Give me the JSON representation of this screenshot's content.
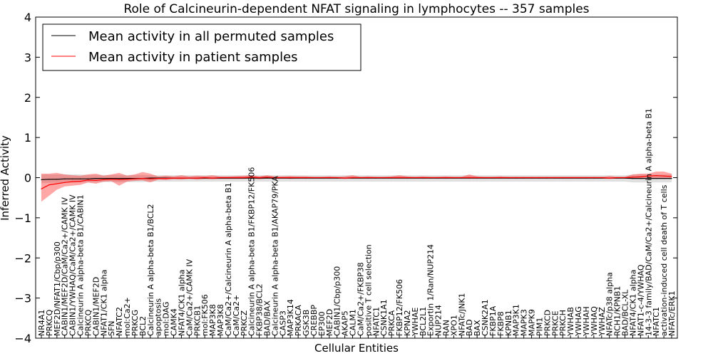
{
  "chart_data": {
    "type": "line",
    "title": "Role of Calcineurin-dependent NFAT signaling in lymphocytes -- 357 samples",
    "xlabel": "Cellular Entities",
    "ylabel": "Inferred Activity",
    "ylim": [
      -4,
      4
    ],
    "yticks": [
      -4,
      -3,
      -2,
      -1,
      0,
      1,
      2,
      3,
      4
    ],
    "ytick_labels": [
      "−4",
      "−3",
      "−2",
      "−1",
      "0",
      "1",
      "2",
      "3",
      "4"
    ],
    "legend_position": "top-left",
    "categories": [
      "NR4A1",
      "PRKCQ",
      "MEF2D/NFAT1/Cbp/p300",
      "CABIN1/MEF2D/CaM/Ca2+/CAMK IV",
      "CABIN1/YWHAQ/CaM/Ca2+/CAMK IV",
      "Calcineurin A alpha-beta B1/CABIN1",
      "PRKCQ",
      "CABIN1/MEF2D",
      "NFAT1/CK1 alpha",
      "SFN",
      "NFATC2",
      "mol:Ca2+",
      "PRKCG",
      "BCL2",
      "Calcineurin A alpha-beta B1/BCL2",
      "apoptosis",
      "mol:DAG",
      "CAMK4",
      "NFAT4/CK1 alpha",
      "CaM/Ca2+/CAMK IV",
      "PRKCB1",
      "mol:FK506",
      "MAP3K8",
      "MAP3K8",
      "CaM/Ca2+/Calcineurin A alpha-beta B1",
      "CaM/Ca2+",
      "PRKCZ",
      "Calcineurin A alpha-beta B1/FKBP12/FK506",
      "FKBP38/BCL2",
      "BAD/BAX",
      "Calcineurin A alpha-beta B1/AKAP79/PKA",
      "CASP3",
      "MAP3K14",
      "PRKACA",
      "GSK3B",
      "CREBBP",
      "EP300",
      "MEF2D",
      "CABIN1/Cbp/p300",
      "AKAP5",
      "CALM1",
      "CaM/Ca2+/FKBP38",
      "positive T cell selection",
      "NFATC1",
      "CSNK1A1",
      "PRKCA",
      "FKBP12/FK506",
      "KPNA2",
      "YWHAE",
      "BCL2L1",
      "Exportin 1/Ran/NUP214",
      "NUP214",
      "RAN",
      "XPO1",
      "NFATc/JNK1",
      "BAD",
      "BAX",
      "CSNK2A1",
      "FKBP1A",
      "FKBP8",
      "KPNB1",
      "MAP3K1",
      "MAPK3",
      "MAPK9",
      "PIM1",
      "PRKCD",
      "PRKCE",
      "PRKCH",
      "YWHAB",
      "YWHAG",
      "YWHAH",
      "YWHAQ",
      "YWHAZ",
      "NFATc/p38 alpha",
      "RCH1/KPNB1",
      "BAD/BCL-XL",
      "NFAT4/CK1 alpha",
      "NFAT1-c-4/YWHAQ",
      "14-3-3 family/BAD/CaM/Ca2+/Calcineurin A alpha-beta B1",
      "NFATC1",
      "activation-induced cell death of T cells",
      "NFATc/ERK1"
    ],
    "series": [
      {
        "name": "Mean activity in all permuted samples",
        "color": "#000000",
        "values": [
          -0.05,
          -0.04,
          -0.04,
          -0.03,
          -0.03,
          -0.03,
          -0.03,
          -0.02,
          -0.02,
          -0.02,
          -0.02,
          -0.02,
          -0.02,
          -0.02,
          -0.01,
          -0.01,
          -0.01,
          -0.01,
          -0.01,
          -0.01,
          -0.01,
          -0.01,
          -0.01,
          -0.01,
          -0.01,
          -0.01,
          -0.01,
          -0.01,
          -0.01,
          -0.01,
          -0.01,
          -0.01,
          -0.01,
          -0.01,
          -0.01,
          -0.01,
          -0.01,
          -0.01,
          -0.01,
          -0.01,
          -0.01,
          -0.01,
          -0.01,
          -0.01,
          -0.01,
          -0.01,
          -0.01,
          -0.01,
          -0.01,
          -0.01,
          -0.01,
          -0.01,
          -0.01,
          -0.01,
          -0.01,
          -0.01,
          -0.01,
          -0.01,
          -0.01,
          -0.01,
          -0.01,
          -0.01,
          -0.01,
          -0.01,
          -0.01,
          -0.01,
          -0.01,
          -0.01,
          -0.01,
          -0.01,
          -0.01,
          -0.01,
          -0.01,
          -0.01,
          -0.01,
          -0.01,
          -0.02,
          -0.02,
          -0.02,
          -0.02,
          -0.02,
          -0.02
        ],
        "band_lower": [
          -0.14,
          -0.13,
          -0.13,
          -0.12,
          -0.12,
          -0.12,
          -0.12,
          -0.11,
          -0.11,
          -0.11,
          -0.11,
          -0.11,
          -0.11,
          -0.11,
          -0.1,
          -0.1,
          -0.1,
          -0.1,
          -0.1,
          -0.1,
          -0.1,
          -0.1,
          -0.1,
          -0.1,
          -0.1,
          -0.1,
          -0.1,
          -0.1,
          -0.1,
          -0.1,
          -0.1,
          -0.1,
          -0.1,
          -0.1,
          -0.1,
          -0.1,
          -0.1,
          -0.1,
          -0.1,
          -0.1,
          -0.1,
          -0.1,
          -0.1,
          -0.1,
          -0.1,
          -0.1,
          -0.1,
          -0.1,
          -0.1,
          -0.1,
          -0.1,
          -0.1,
          -0.1,
          -0.1,
          -0.1,
          -0.1,
          -0.1,
          -0.1,
          -0.1,
          -0.1,
          -0.1,
          -0.1,
          -0.1,
          -0.1,
          -0.1,
          -0.1,
          -0.1,
          -0.1,
          -0.1,
          -0.1,
          -0.1,
          -0.1,
          -0.1,
          -0.1,
          -0.1,
          -0.1,
          -0.12,
          -0.12,
          -0.12,
          -0.12,
          -0.12,
          -0.12
        ],
        "band_upper": [
          0.08,
          0.08,
          0.08,
          0.08,
          0.08,
          0.08,
          0.07,
          0.07,
          0.07,
          0.07,
          0.07,
          0.07,
          0.07,
          0.07,
          0.06,
          0.06,
          0.06,
          0.06,
          0.06,
          0.06,
          0.06,
          0.06,
          0.06,
          0.06,
          0.06,
          0.06,
          0.06,
          0.06,
          0.06,
          0.06,
          0.06,
          0.06,
          0.06,
          0.06,
          0.06,
          0.06,
          0.06,
          0.06,
          0.06,
          0.06,
          0.06,
          0.06,
          0.06,
          0.06,
          0.06,
          0.06,
          0.06,
          0.06,
          0.06,
          0.06,
          0.06,
          0.06,
          0.06,
          0.06,
          0.06,
          0.06,
          0.06,
          0.06,
          0.06,
          0.06,
          0.06,
          0.06,
          0.06,
          0.06,
          0.06,
          0.06,
          0.06,
          0.06,
          0.06,
          0.06,
          0.06,
          0.06,
          0.06,
          0.06,
          0.06,
          0.06,
          0.08,
          0.08,
          0.08,
          0.08,
          0.08,
          0.08
        ]
      },
      {
        "name": "Mean activity in patient samples",
        "color": "#ff0000",
        "values": [
          -0.28,
          -0.18,
          -0.15,
          -0.12,
          -0.1,
          -0.09,
          -0.06,
          -0.07,
          -0.05,
          -0.04,
          -0.05,
          -0.04,
          -0.03,
          -0.02,
          -0.03,
          -0.02,
          -0.02,
          -0.01,
          -0.01,
          -0.01,
          -0.01,
          0.0,
          -0.01,
          0.0,
          0.0,
          0.0,
          0.0,
          0.01,
          0.0,
          0.01,
          0.0,
          0.0,
          0.0,
          0.0,
          0.0,
          0.0,
          0.0,
          0.0,
          0.0,
          -0.01,
          0.0,
          0.0,
          0.0,
          0.0,
          0.0,
          0.0,
          0.0,
          0.0,
          0.0,
          0.0,
          0.0,
          0.0,
          0.0,
          0.0,
          0.0,
          0.0,
          0.0,
          0.0,
          0.0,
          0.0,
          0.0,
          0.0,
          0.0,
          0.0,
          0.0,
          0.0,
          0.0,
          0.0,
          0.0,
          0.0,
          0.0,
          0.0,
          0.0,
          -0.01,
          0.0,
          0.0,
          0.01,
          0.02,
          0.04,
          0.05,
          0.04,
          0.03
        ],
        "band_lower": [
          -0.6,
          -0.45,
          -0.3,
          -0.22,
          -0.2,
          -0.18,
          -0.12,
          -0.15,
          -0.1,
          -0.09,
          -0.2,
          -0.1,
          -0.08,
          -0.07,
          -0.12,
          -0.05,
          -0.06,
          -0.04,
          -0.05,
          -0.03,
          -0.05,
          -0.03,
          -0.04,
          -0.03,
          -0.03,
          -0.03,
          -0.03,
          -0.02,
          -0.04,
          -0.02,
          -0.03,
          -0.02,
          -0.03,
          -0.02,
          -0.02,
          -0.02,
          -0.02,
          -0.02,
          -0.02,
          -0.03,
          -0.02,
          -0.02,
          -0.02,
          -0.02,
          -0.02,
          -0.02,
          -0.02,
          -0.02,
          -0.02,
          -0.02,
          -0.02,
          -0.02,
          -0.02,
          -0.02,
          -0.02,
          -0.02,
          -0.02,
          -0.02,
          -0.02,
          -0.02,
          -0.02,
          -0.02,
          -0.02,
          -0.02,
          -0.02,
          -0.02,
          -0.02,
          -0.02,
          -0.02,
          -0.02,
          -0.02,
          -0.02,
          -0.02,
          -0.03,
          -0.02,
          -0.02,
          -0.02,
          -0.03,
          -0.02,
          -0.02,
          -0.02,
          -0.03
        ],
        "band_upper": [
          0.1,
          0.1,
          0.12,
          0.08,
          0.06,
          0.05,
          0.08,
          0.1,
          0.05,
          0.08,
          0.12,
          0.05,
          0.08,
          0.14,
          0.1,
          0.03,
          0.05,
          0.03,
          0.06,
          0.03,
          0.05,
          0.04,
          0.06,
          0.03,
          0.03,
          0.04,
          0.05,
          0.06,
          0.03,
          0.06,
          0.03,
          0.03,
          0.04,
          0.03,
          0.03,
          0.02,
          0.02,
          0.03,
          0.02,
          0.03,
          0.06,
          0.02,
          0.03,
          0.02,
          0.02,
          0.03,
          0.06,
          0.03,
          0.02,
          0.03,
          0.02,
          0.02,
          0.03,
          0.02,
          0.02,
          0.08,
          0.03,
          0.02,
          0.02,
          0.03,
          0.02,
          0.02,
          0.02,
          0.02,
          0.02,
          0.02,
          0.02,
          0.02,
          0.02,
          0.02,
          0.02,
          0.02,
          0.02,
          0.04,
          0.02,
          0.02,
          0.08,
          0.1,
          0.1,
          0.15,
          0.15,
          0.1
        ]
      }
    ]
  }
}
